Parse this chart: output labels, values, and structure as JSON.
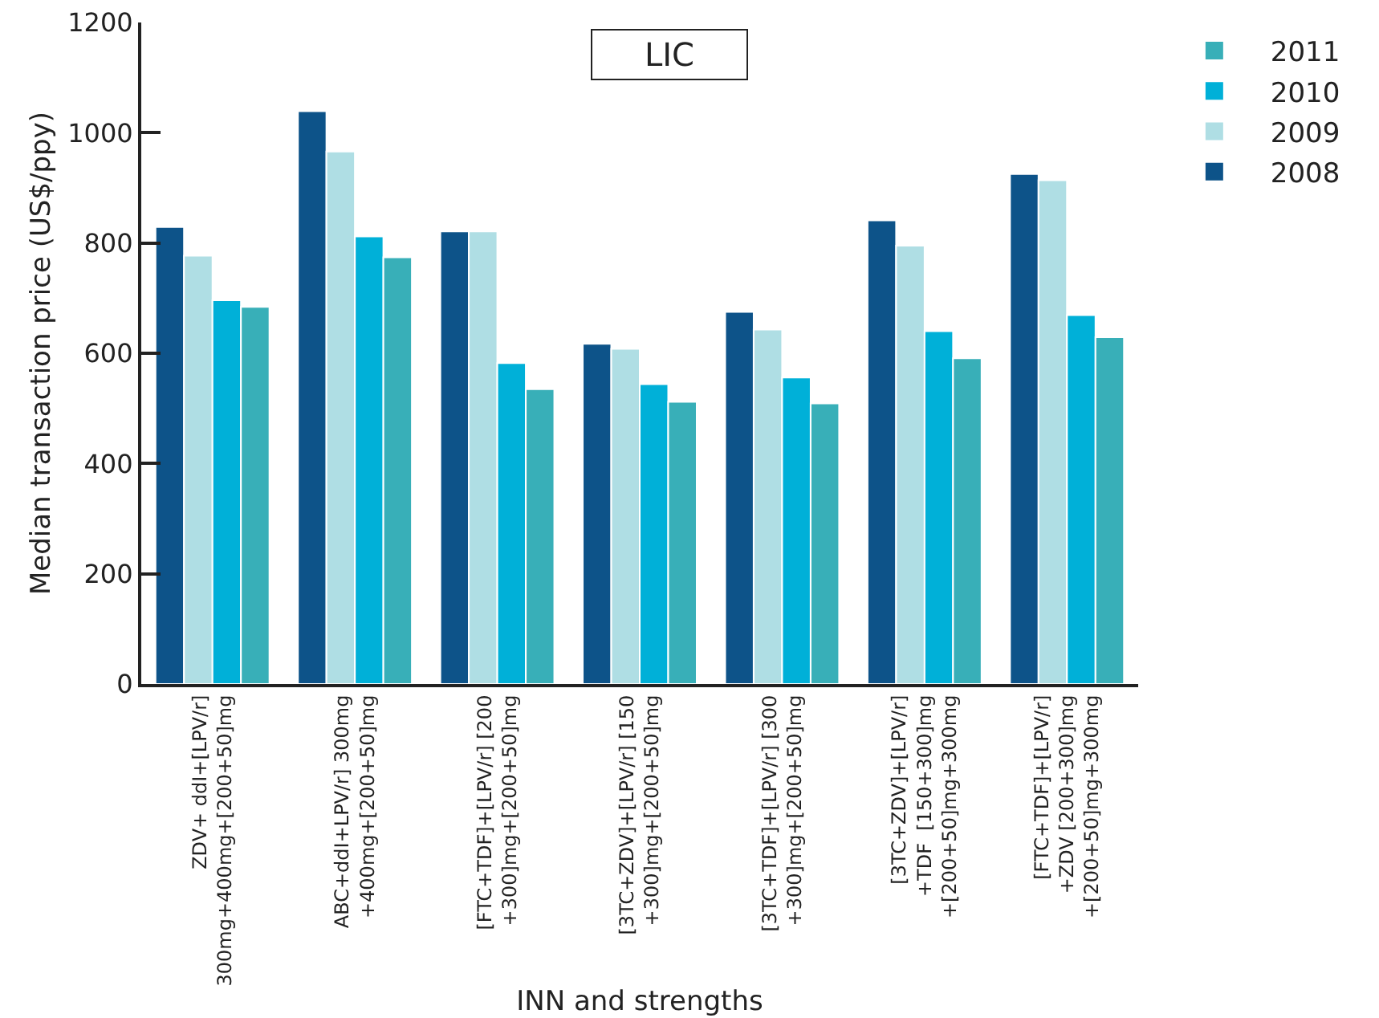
{
  "chart_data": {
    "type": "bar",
    "title": "LIC",
    "xlabel": "INN and strengths",
    "ylabel": "Median transaction price (US$/ppy)",
    "categories": [
      "ZDV+ ddI+[LPV/r]\n300mg+400mg+[200+50]mg",
      "ABC+ddI+LPV/r] 300mg\n+400mg+[200+50]mg",
      "[FTC+TDF]+[LPV/r] [200\n+300]mg+[200+50]mg",
      "[3TC+ZDV]+[LPV/r] [150\n+300]mg+[200+50]mg",
      "[3TC+TDF]+[LPV/r] [300\n+300]mg+[200+50]mg",
      "[3TC+ZDV]+[LPV/r]\n+TDF  [150+300]mg\n+[200+50]mg+300mg",
      "[FTC+TDF]+[LPV/r]\n+ZDV [200+300]mg\n+[200+50]mg+300mg"
    ],
    "series": [
      {
        "name": "2008",
        "color": "#0d5389",
        "values": [
          829,
          1039,
          821,
          617,
          675,
          841,
          925
        ]
      },
      {
        "name": "2009",
        "color": "#afdee4",
        "values": [
          777,
          966,
          821,
          608,
          643,
          795,
          914
        ]
      },
      {
        "name": "2010",
        "color": "#00b0d8",
        "values": [
          696,
          812,
          582,
          544,
          556,
          640,
          669
        ]
      },
      {
        "name": "2011",
        "color": "#38afb8",
        "values": [
          684,
          774,
          535,
          512,
          509,
          591,
          629
        ]
      }
    ],
    "ylim": [
      0,
      1200
    ],
    "yticks": [
      0,
      200,
      400,
      600,
      800,
      1000,
      1200
    ],
    "grid": false,
    "legend": "top right"
  }
}
